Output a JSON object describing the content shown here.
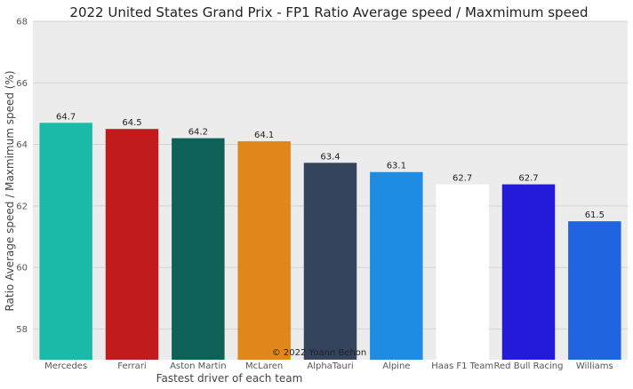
{
  "chart_data": {
    "type": "bar",
    "title": "2022 United States Grand Prix - FP1 Ratio Average speed / Maxmimum speed",
    "xlabel": "Fastest driver of each team",
    "ylabel": "Ratio Average speed / Maxmimum speed (%)",
    "categories": [
      "Mercedes",
      "Ferrari",
      "Aston Martin",
      "McLaren",
      "AlphaTauri",
      "Alpine",
      "Haas F1 Team",
      "Red Bull Racing",
      "Williams"
    ],
    "values": [
      64.7,
      64.5,
      64.2,
      64.1,
      63.4,
      63.1,
      62.7,
      62.7,
      61.5
    ],
    "data_labels": [
      "64.7",
      "64.5",
      "64.2",
      "64.1",
      "63.4",
      "63.1",
      "62.7",
      "62.7",
      "61.5"
    ],
    "colors": [
      "#19bba8",
      "#c11b1d",
      "#0d6157",
      "#e0861b",
      "#33445c",
      "#1e8ce3",
      "#ffffff",
      "#231bd9",
      "#2064e0"
    ],
    "ylim": [
      57,
      68
    ],
    "yticks": [
      58,
      60,
      62,
      64,
      66,
      68
    ],
    "grid": true,
    "legend": "none",
    "plot_background": "#ececec",
    "grid_color": "#d4d4d4",
    "credit": "© 2022 Yoann Behon"
  }
}
